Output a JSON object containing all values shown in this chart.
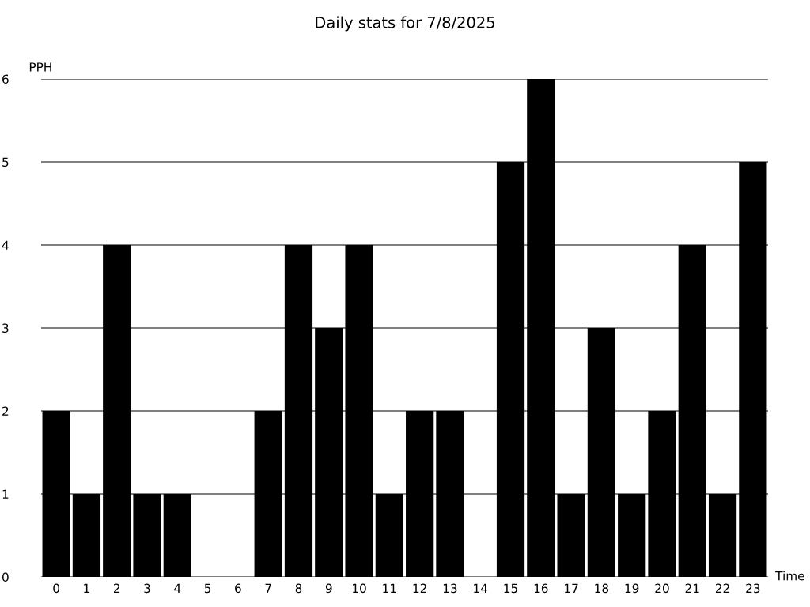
{
  "chart_data": {
    "type": "bar",
    "title": "Daily stats for 7/8/2025",
    "xlabel": "Time",
    "ylabel": "PPH",
    "categories": [
      "0",
      "1",
      "2",
      "3",
      "4",
      "5",
      "6",
      "7",
      "8",
      "9",
      "10",
      "11",
      "12",
      "13",
      "14",
      "15",
      "16",
      "17",
      "18",
      "19",
      "20",
      "21",
      "22",
      "23"
    ],
    "values": [
      2,
      1,
      4,
      1,
      1,
      0,
      0,
      2,
      4,
      3,
      4,
      1,
      2,
      2,
      0,
      5,
      6,
      1,
      3,
      1,
      2,
      4,
      1,
      5
    ],
    "color": "#000000",
    "ylim": [
      0,
      6
    ],
    "yticks": [
      0,
      1,
      2,
      3,
      4,
      5,
      6
    ],
    "grid": "y",
    "legend": false
  }
}
